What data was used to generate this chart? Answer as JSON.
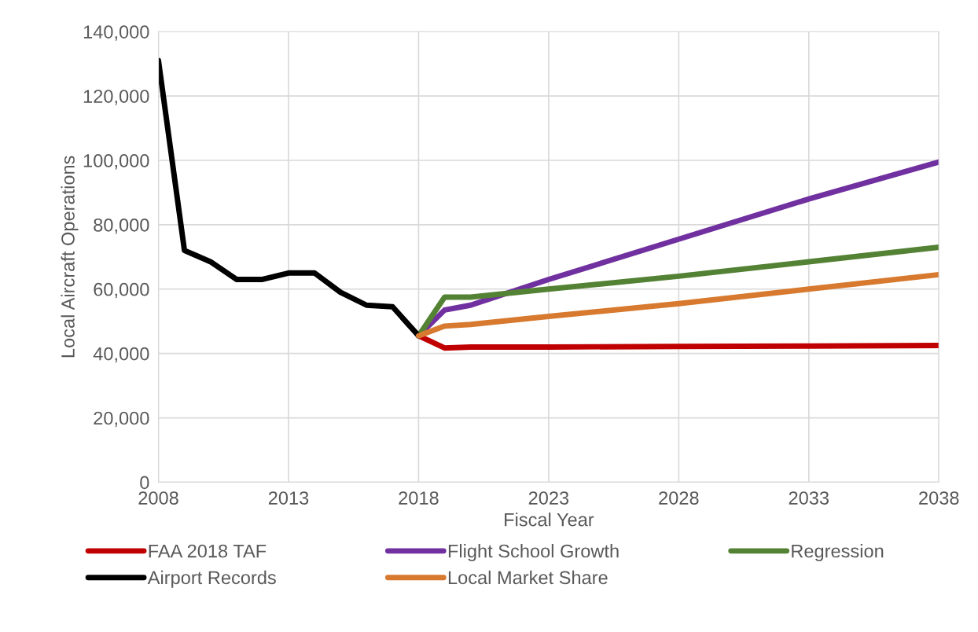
{
  "chart_data": {
    "type": "line",
    "xlabel": "Fiscal Year",
    "ylabel": "Local Aircraft Operations",
    "xlim": [
      2008,
      2038
    ],
    "xticks": [
      2008,
      2013,
      2018,
      2023,
      2028,
      2033,
      2038
    ],
    "ylim": [
      0,
      140000
    ],
    "yticks": [
      {
        "value": 0,
        "label": "0"
      },
      {
        "value": 20000,
        "label": "20,000"
      },
      {
        "value": 40000,
        "label": "40,000"
      },
      {
        "value": 60000,
        "label": "60,000"
      },
      {
        "value": 80000,
        "label": "80,000"
      },
      {
        "value": 100000,
        "label": "100,000"
      },
      {
        "value": 120000,
        "label": "120,000"
      },
      {
        "value": 140000,
        "label": "140,000"
      }
    ],
    "grid": true,
    "legend": "bottom",
    "line_style": "solid",
    "marker": "none",
    "series": [
      {
        "name": "FAA 2018 TAF",
        "color": "#c00000",
        "x": [
          2018,
          2019,
          2020,
          2023,
          2028,
          2033,
          2038
        ],
        "values": [
          45500,
          41700,
          42000,
          42000,
          42200,
          42300,
          42500
        ]
      },
      {
        "name": "Flight School Growth",
        "color": "#7030a0",
        "x": [
          2018,
          2019,
          2020,
          2023,
          2028,
          2033,
          2038
        ],
        "values": [
          45500,
          53500,
          55000,
          63000,
          75500,
          88000,
          99500
        ]
      },
      {
        "name": "Regression",
        "color": "#548235",
        "x": [
          2018,
          2019,
          2020,
          2023,
          2028,
          2033,
          2038
        ],
        "values": [
          45500,
          57500,
          57500,
          60000,
          64000,
          68500,
          73000
        ]
      },
      {
        "name": "Airport Records",
        "color": "#000000",
        "x": [
          2008,
          2009,
          2010,
          2011,
          2012,
          2013,
          2014,
          2015,
          2016,
          2017,
          2018
        ],
        "values": [
          131000,
          72000,
          68500,
          63000,
          63000,
          65000,
          65000,
          59000,
          55000,
          54500,
          45500
        ]
      },
      {
        "name": "Local Market Share",
        "color": "#d77a2f",
        "x": [
          2018,
          2019,
          2020,
          2023,
          2028,
          2033,
          2038
        ],
        "values": [
          45500,
          48500,
          49000,
          51500,
          55500,
          60000,
          64500
        ]
      }
    ]
  }
}
